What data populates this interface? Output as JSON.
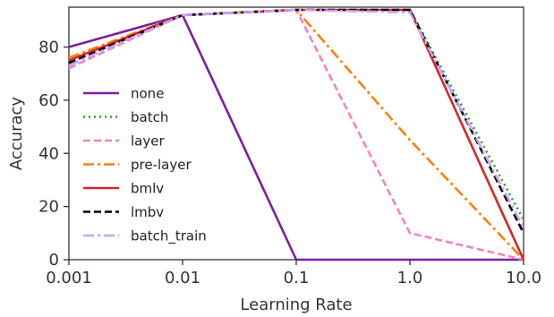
{
  "chart_data": {
    "type": "line",
    "title": "",
    "xlabel": "Learning Rate",
    "ylabel": "Accuracy",
    "x_scale": "log",
    "x": [
      0.001,
      0.01,
      0.1,
      1.0,
      10.0
    ],
    "x_tick_labels": [
      "0.001",
      "0.01",
      "0.1",
      "1.0",
      "10.0"
    ],
    "y_ticks": [
      0,
      20,
      40,
      60,
      80
    ],
    "xlim": [
      0.001,
      10.0
    ],
    "ylim": [
      0,
      95
    ],
    "grid": false,
    "legend_position": "center-left",
    "series": [
      {
        "name": "none",
        "values": [
          80,
          92,
          0,
          0,
          0
        ],
        "color": "#7b1fa2",
        "dash": "solid"
      },
      {
        "name": "batch",
        "values": [
          75,
          92,
          94,
          94,
          15
        ],
        "color": "#2ca02c",
        "dash": "dotted"
      },
      {
        "name": "layer",
        "values": [
          72,
          92,
          94,
          10,
          0
        ],
        "color": "#f781bf",
        "dash": "dashed"
      },
      {
        "name": "pre-layer",
        "values": [
          76,
          92,
          94,
          45,
          0
        ],
        "color": "#ff7f0e",
        "dash": "dashdot"
      },
      {
        "name": "bmlv",
        "values": [
          75,
          92,
          94,
          94,
          0
        ],
        "color": "#d62728",
        "dash": "solid"
      },
      {
        "name": "lmbv",
        "values": [
          74,
          92,
          94,
          94,
          10
        ],
        "color": "#000000",
        "dash": "dashed"
      },
      {
        "name": "batch_train",
        "values": [
          73,
          92,
          94,
          93,
          12
        ],
        "color": "#c8a2ff",
        "dash": "dashdot"
      }
    ]
  }
}
